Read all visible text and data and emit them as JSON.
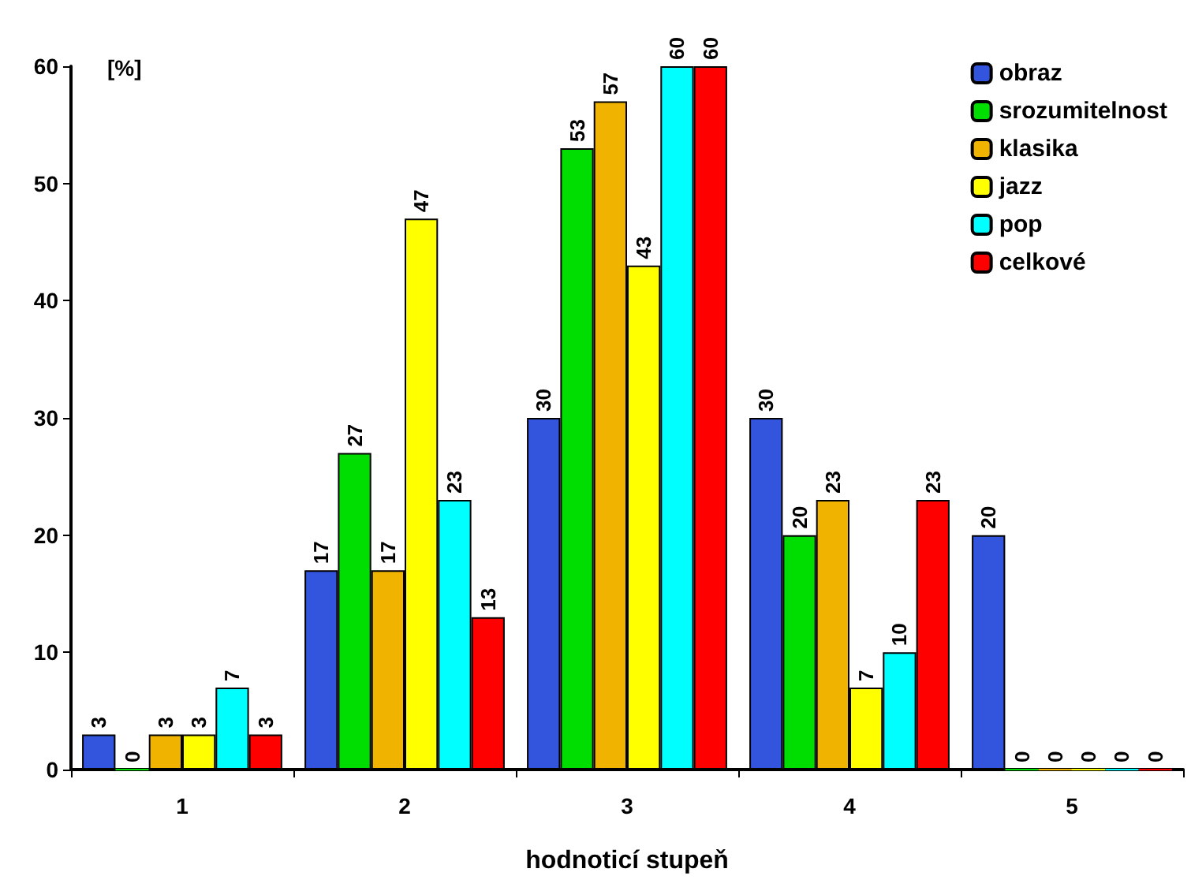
{
  "chart_data": {
    "type": "bar",
    "xlabel": "hodnoticí stupeň",
    "ylabel": "[%]",
    "categories": [
      "1",
      "2",
      "3",
      "4",
      "5"
    ],
    "series": [
      {
        "name": "obraz",
        "color": "#3355dd",
        "values": [
          3,
          17,
          30,
          30,
          20
        ]
      },
      {
        "name": "srozumitelnost",
        "color": "#00dd00",
        "values": [
          0,
          27,
          53,
          20,
          0
        ]
      },
      {
        "name": "klasika",
        "color": "#f0b400",
        "values": [
          3,
          17,
          57,
          23,
          0
        ]
      },
      {
        "name": "jazz",
        "color": "#ffff00",
        "values": [
          3,
          47,
          43,
          7,
          0
        ]
      },
      {
        "name": "pop",
        "color": "#00ffff",
        "values": [
          7,
          23,
          60,
          10,
          0
        ]
      },
      {
        "name": "celkové",
        "color": "#ff0000",
        "values": [
          3,
          13,
          60,
          23,
          0
        ]
      }
    ],
    "ylim": [
      0,
      60
    ],
    "yticks": [
      0,
      10,
      20,
      30,
      40,
      50,
      60
    ],
    "grid": false,
    "legend": "top right",
    "data_labels": true
  }
}
